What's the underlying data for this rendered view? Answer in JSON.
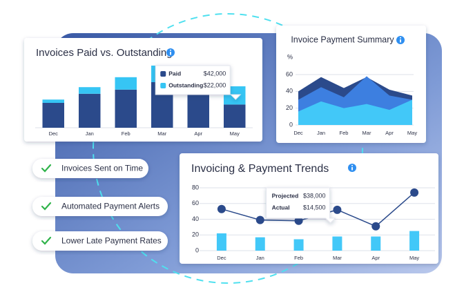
{
  "checklist": [
    "Invoices Sent on Time",
    "Automated Payment Alerts",
    "Lower Late Payment Rates"
  ],
  "chart_data": [
    {
      "type": "bar",
      "stacked": true,
      "title": "Invoices Paid vs. Outstanding",
      "categories": [
        "Dec",
        "Jan",
        "Feb",
        "Mar",
        "Apr",
        "May"
      ],
      "series": [
        {
          "name": "Paid",
          "color": "#2b4a8b",
          "values": [
            30000,
            41000,
            46000,
            55000,
            42000,
            28000
          ],
          "value_labels": [
            null,
            null,
            null,
            null,
            "$42,000",
            null
          ]
        },
        {
          "name": "Outstanding",
          "color": "#36c5f4",
          "values": [
            4000,
            8000,
            15000,
            20000,
            22000,
            22000
          ],
          "value_labels": [
            null,
            null,
            null,
            null,
            "$22,000",
            null
          ]
        }
      ]
    },
    {
      "type": "area",
      "title": "Invoice Payment Summary",
      "y_label": "%",
      "categories": [
        "Dec",
        "Jan",
        "Feb",
        "Mar",
        "Apr",
        "May"
      ],
      "ylim": [
        0,
        60
      ],
      "yticks": [
        0,
        20,
        40,
        60
      ],
      "grid": true,
      "series": [
        {
          "color": "#2b4a8b",
          "values": [
            40,
            57,
            44,
            57,
            42,
            35
          ]
        },
        {
          "color": "#3d7fe0",
          "values": [
            30,
            45,
            33,
            58,
            35,
            30
          ]
        },
        {
          "color": "#42c8f8",
          "values": [
            16,
            28,
            20,
            25,
            18,
            30
          ]
        }
      ]
    },
    {
      "type": "combo",
      "title": "Invoicing & Payment Trends",
      "categories": [
        "Dec",
        "Jan",
        "Feb",
        "Mar",
        "Apr",
        "May"
      ],
      "ylim": [
        0,
        80
      ],
      "yticks": [
        0,
        20,
        40,
        60,
        80
      ],
      "grid": true,
      "series": [
        {
          "name": "Projected",
          "type": "line",
          "color": "#2b4a8b",
          "values": [
            53,
            39,
            38,
            52,
            31,
            74
          ],
          "value_labels": [
            null,
            null,
            "$38,000",
            null,
            null,
            null
          ]
        },
        {
          "name": "Actual",
          "type": "bar",
          "color": "#42c8f8",
          "values": [
            22,
            17,
            14.5,
            18,
            18,
            25
          ],
          "value_labels": [
            null,
            null,
            "$14,500",
            null,
            null,
            null
          ]
        }
      ]
    }
  ]
}
